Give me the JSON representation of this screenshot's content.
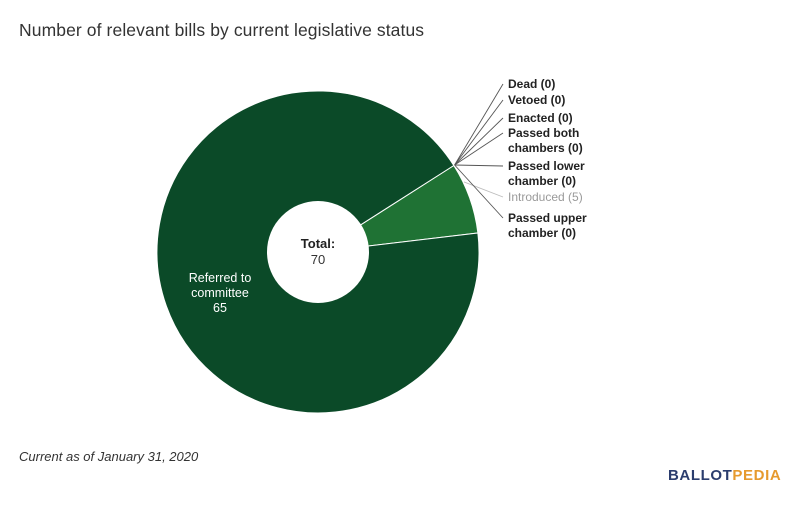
{
  "title": "Number of relevant bills by current legislative status",
  "footnote": "Current as of January 31, 2020",
  "logo": {
    "part1": "BALLOT",
    "part2": "PEDIA"
  },
  "center": {
    "label": "Total:",
    "value": "70"
  },
  "colors": {
    "referred": "#0b4a28",
    "introduced": "#1f7234",
    "legend_text": "#222222",
    "legend_muted": "#9a9a9a",
    "slice_label": "#ffffff"
  },
  "chart_data": {
    "type": "pie",
    "variant": "donut",
    "title": "Number of relevant bills by current legislative status",
    "total": 70,
    "slices": [
      {
        "name": "Referred to committee",
        "lines": [
          "Referred to",
          "committee"
        ],
        "value": 65,
        "color": "#0b4a28"
      },
      {
        "name": "Introduced",
        "lines": [
          "Introduced (5)"
        ],
        "value": 5,
        "color": "#1f7234",
        "muted": true
      },
      {
        "name": "Passed upper chamber",
        "lines": [
          "Passed upper",
          "chamber (0)"
        ],
        "value": 0
      },
      {
        "name": "Passed lower chamber",
        "lines": [
          "Passed lower",
          "chamber (0)"
        ],
        "value": 0
      },
      {
        "name": "Passed both chambers",
        "lines": [
          "Passed both",
          "chambers (0)"
        ],
        "value": 0
      },
      {
        "name": "Enacted",
        "lines": [
          "Enacted (0)"
        ],
        "value": 0
      },
      {
        "name": "Vetoed",
        "lines": [
          "Vetoed (0)"
        ],
        "value": 0
      },
      {
        "name": "Dead",
        "lines": [
          "Dead (0)"
        ],
        "value": 0
      }
    ]
  }
}
